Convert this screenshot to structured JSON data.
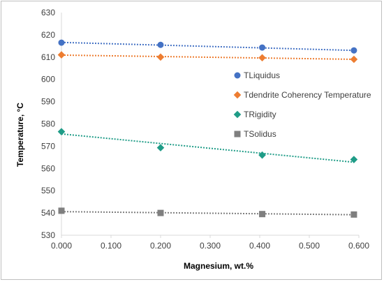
{
  "chart_data": {
    "type": "scatter",
    "title": "",
    "xlabel": "Magnesium, wt.%",
    "ylabel": "Temperature, °C",
    "xlim": [
      0,
      0.6
    ],
    "ylim": [
      530,
      630
    ],
    "x_ticks": [
      "0.000",
      "0.100",
      "0.200",
      "0.300",
      "0.400",
      "0.500",
      "0.600"
    ],
    "y_ticks": [
      "530",
      "540",
      "550",
      "560",
      "570",
      "580",
      "590",
      "600",
      "610",
      "620",
      "630"
    ],
    "grid": false,
    "legend_position": "right",
    "trendlines": true,
    "series": [
      {
        "name": "TLiquidus",
        "color": "#4472c4",
        "marker": "circle",
        "x": [
          0.0,
          0.2,
          0.405,
          0.59
        ],
        "y": [
          616.5,
          615.5,
          614.3,
          613.0
        ],
        "trend": [
          616.6,
          613.0
        ]
      },
      {
        "name": "Tdendrite Coherency Temperature",
        "color": "#ed7d31",
        "marker": "diamond",
        "x": [
          0.0,
          0.2,
          0.405,
          0.59
        ],
        "y": [
          611.0,
          610.0,
          609.7,
          609.0
        ],
        "trend": [
          610.9,
          609.0
        ]
      },
      {
        "name": "TRigidity",
        "color": "#1f9c87",
        "marker": "diamond",
        "x": [
          0.0,
          0.2,
          0.405,
          0.59
        ],
        "y": [
          576.5,
          569.3,
          566.0,
          564.0
        ],
        "trend": [
          575.5,
          562.8
        ]
      },
      {
        "name": "TSolidus",
        "color": "#7f7f7f",
        "marker": "square",
        "x": [
          0.0,
          0.2,
          0.405,
          0.59
        ],
        "y": [
          541.0,
          540.0,
          539.5,
          539.3
        ],
        "trend": [
          540.6,
          539.2
        ]
      }
    ]
  }
}
